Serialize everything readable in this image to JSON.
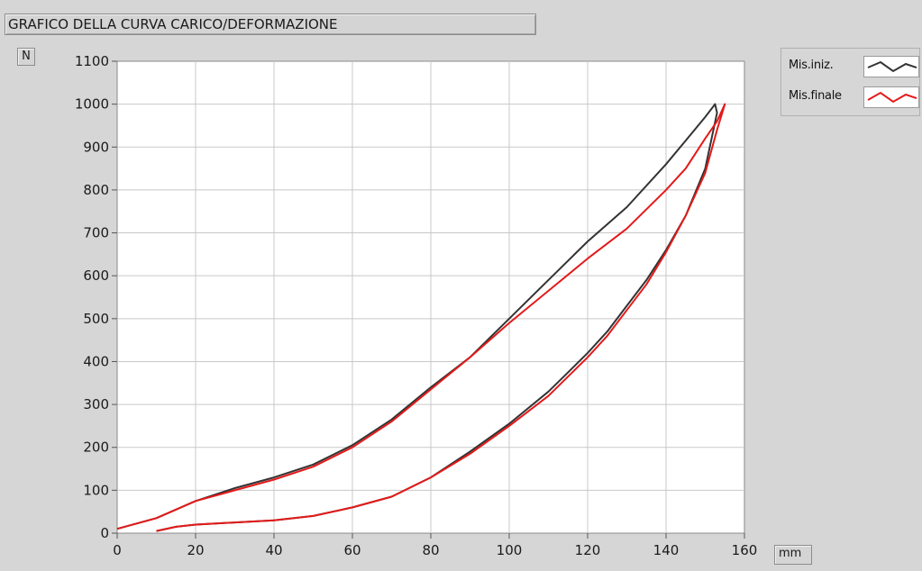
{
  "header": {
    "title": "GRAFICO DELLA CURVA CARICO/DEFORMAZIONE"
  },
  "units": {
    "y": "N",
    "x": "mm"
  },
  "legend": [
    {
      "label": "Mis.iniz.",
      "color": "#333333"
    },
    {
      "label": "Mis.finale",
      "color": "#e41a1a"
    }
  ],
  "chart_data": {
    "type": "line",
    "xlim": [
      0,
      160
    ],
    "ylim": [
      0,
      1100
    ],
    "x_ticks": [
      0,
      20,
      40,
      60,
      80,
      100,
      120,
      140,
      160
    ],
    "y_ticks": [
      0,
      100,
      200,
      300,
      400,
      500,
      600,
      700,
      800,
      900,
      1000,
      1100
    ],
    "grid": true,
    "legend_position": "right",
    "series": [
      {
        "name": "Mis.iniz.",
        "color": "#333333",
        "x": [
          0,
          10,
          20,
          30,
          40,
          50,
          60,
          70,
          80,
          90,
          100,
          110,
          120,
          130,
          140,
          145,
          150,
          152.5,
          153,
          150,
          145,
          140,
          135,
          130,
          125,
          120,
          115,
          110,
          100,
          90,
          80,
          70,
          60,
          50,
          40,
          30,
          20,
          15,
          10
        ],
        "y": [
          10,
          35,
          75,
          105,
          130,
          160,
          205,
          265,
          340,
          410,
          500,
          590,
          680,
          760,
          860,
          915,
          970,
          1000,
          980,
          850,
          740,
          660,
          590,
          530,
          470,
          420,
          375,
          330,
          255,
          190,
          130,
          85,
          60,
          40,
          30,
          25,
          20,
          15,
          5
        ]
      },
      {
        "name": "Mis.finale",
        "color": "#e41a1a",
        "x": [
          0,
          10,
          20,
          30,
          40,
          50,
          60,
          70,
          80,
          90,
          100,
          110,
          120,
          130,
          140,
          145,
          150,
          153,
          154.5,
          155,
          153,
          150,
          145,
          140,
          135,
          130,
          125,
          120,
          115,
          110,
          100,
          90,
          80,
          70,
          60,
          50,
          40,
          30,
          20,
          15,
          10
        ],
        "y": [
          10,
          35,
          75,
          100,
          125,
          155,
          200,
          260,
          335,
          410,
          490,
          565,
          640,
          710,
          800,
          850,
          920,
          960,
          990,
          1000,
          940,
          840,
          740,
          655,
          580,
          520,
          460,
          410,
          365,
          320,
          250,
          185,
          130,
          85,
          60,
          40,
          30,
          25,
          20,
          15,
          5
        ]
      }
    ]
  }
}
